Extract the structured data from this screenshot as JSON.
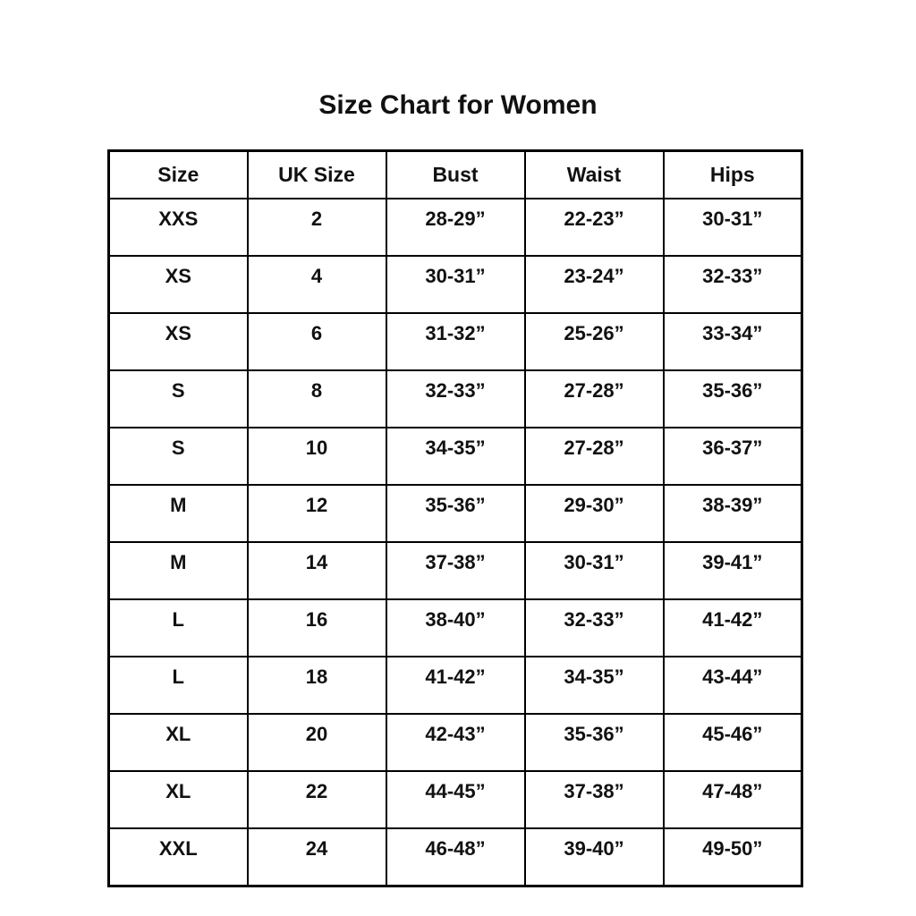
{
  "title": "Size Chart for Women",
  "table": {
    "columns": [
      "Size",
      "UK Size",
      "Bust",
      "Waist",
      "Hips"
    ],
    "rows": [
      [
        "XXS",
        "2",
        "28-29”",
        "22-23”",
        "30-31”"
      ],
      [
        "XS",
        "4",
        "30-31”",
        "23-24”",
        "32-33”"
      ],
      [
        "XS",
        "6",
        "31-32”",
        "25-26”",
        "33-34”"
      ],
      [
        "S",
        "8",
        "32-33”",
        "27-28”",
        "35-36”"
      ],
      [
        "S",
        "10",
        "34-35”",
        "27-28”",
        "36-37”"
      ],
      [
        "M",
        "12",
        "35-36”",
        "29-30”",
        "38-39”"
      ],
      [
        "M",
        "14",
        "37-38”",
        "30-31”",
        "39-41”"
      ],
      [
        "L",
        "16",
        "38-40”",
        "32-33”",
        "41-42”"
      ],
      [
        "L",
        "18",
        "41-42”",
        "34-35”",
        "43-44”"
      ],
      [
        "XL",
        "20",
        "42-43”",
        "35-36”",
        "45-46”"
      ],
      [
        "XL",
        "22",
        "44-45”",
        "37-38”",
        "47-48”"
      ],
      [
        "XXL",
        "24",
        "46-48”",
        "39-40”",
        "49-50”"
      ]
    ]
  },
  "chart_data": {
    "type": "table",
    "title": "Size Chart for Women",
    "columns": [
      "Size",
      "UK Size",
      "Bust",
      "Waist",
      "Hips"
    ],
    "rows": [
      [
        "XXS",
        "2",
        "28-29”",
        "22-23”",
        "30-31”"
      ],
      [
        "XS",
        "4",
        "30-31”",
        "23-24”",
        "32-33”"
      ],
      [
        "XS",
        "6",
        "31-32”",
        "25-26”",
        "33-34”"
      ],
      [
        "S",
        "8",
        "32-33”",
        "27-28”",
        "35-36”"
      ],
      [
        "S",
        "10",
        "34-35”",
        "27-28”",
        "36-37”"
      ],
      [
        "M",
        "12",
        "35-36”",
        "29-30”",
        "38-39”"
      ],
      [
        "M",
        "14",
        "37-38”",
        "30-31”",
        "39-41”"
      ],
      [
        "L",
        "16",
        "38-40”",
        "32-33”",
        "41-42”"
      ],
      [
        "L",
        "18",
        "41-42”",
        "34-35”",
        "43-44”"
      ],
      [
        "XL",
        "20",
        "42-43”",
        "35-36”",
        "45-46”"
      ],
      [
        "XL",
        "22",
        "44-45”",
        "37-38”",
        "47-48”"
      ],
      [
        "XXL",
        "24",
        "46-48”",
        "39-40”",
        "49-50”"
      ]
    ],
    "colors": {
      "border": "#000000",
      "text": "#111111",
      "background": "#ffffff"
    }
  }
}
